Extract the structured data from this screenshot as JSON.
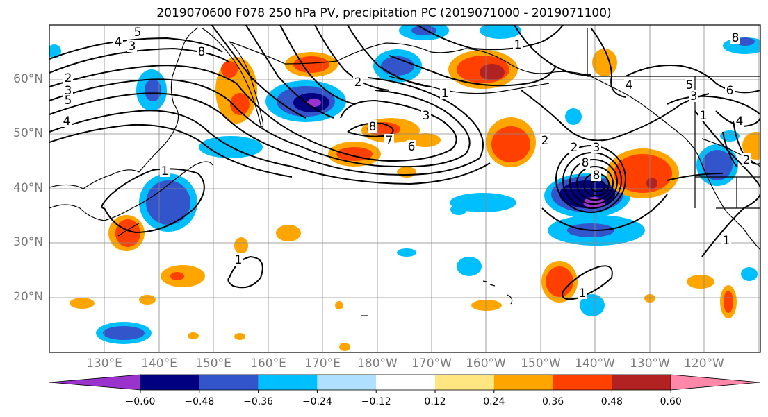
{
  "title": "2019070600 F078 250 hPa PV, precipitation PC (2019071000 - 2019071100)",
  "lat_labels": [
    "60°N",
    "50°N",
    "40°N",
    "30°N",
    "20°N"
  ],
  "lon_labels": [
    "130°E",
    "140°E",
    "150°E",
    "160°E",
    "170°E",
    "180°W",
    "170°W",
    "160°W",
    "150°W",
    "140°W",
    "130°W",
    "120°W"
  ],
  "colorbar": {
    "colors": [
      "#9933cc",
      "#000080",
      "#3355cc",
      "#00bfff",
      "#b0e0ff",
      "#ffffff",
      "#ffe680",
      "#ffa500",
      "#ff4000",
      "#b22222",
      "#ff88aa"
    ],
    "tick_labels": [
      "−0.60",
      "−0.48",
      "−0.36",
      "−0.24",
      "−0.12",
      "0.12",
      "0.24",
      "0.36",
      "0.48",
      "0.60"
    ]
  },
  "contour_labels": [
    "5",
    "4",
    "3",
    "2",
    "3",
    "5",
    "4",
    "8",
    "2",
    "1",
    "1",
    "3",
    "8",
    "7",
    "6",
    "1",
    "2",
    "2",
    "3",
    "8",
    "8",
    "1",
    "1",
    "1",
    "4",
    "5",
    "3",
    "6",
    "8",
    "1",
    "4",
    "2"
  ]
}
